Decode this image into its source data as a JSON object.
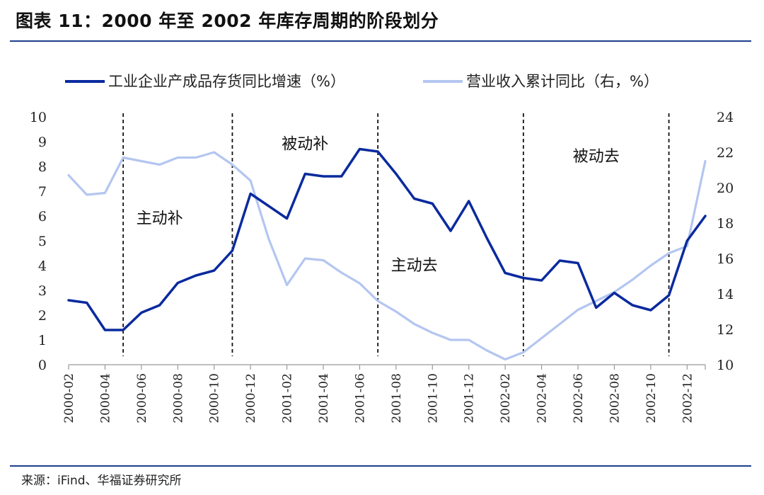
{
  "title": "图表 11：2000 年至 2002 年库存周期的阶段划分",
  "source": "来源：iFind、华福证券研究所",
  "colors": {
    "series1": "#0a2a9e",
    "series2": "#b4c6f0",
    "rule": "#1f3f8f"
  },
  "chart_data": {
    "type": "line",
    "title": "图表 11：2000 年至 2002 年库存周期的阶段划分",
    "x": [
      "2000-02",
      "2000-03",
      "2000-04",
      "2000-05",
      "2000-06",
      "2000-07",
      "2000-08",
      "2000-09",
      "2000-10",
      "2000-11",
      "2000-12",
      "2001-01",
      "2001-02",
      "2001-03",
      "2001-04",
      "2001-05",
      "2001-06",
      "2001-07",
      "2001-08",
      "2001-09",
      "2001-10",
      "2001-11",
      "2001-12",
      "2002-01",
      "2002-02",
      "2002-03",
      "2002-04",
      "2002-05",
      "2002-06",
      "2002-07",
      "2002-08",
      "2002-09",
      "2002-10",
      "2002-11",
      "2002-12",
      "2003-01"
    ],
    "x_tick_labels": [
      "2000-02",
      "2000-04",
      "2000-06",
      "2000-08",
      "2000-10",
      "2000-12",
      "2001-02",
      "2001-04",
      "2001-06",
      "2001-08",
      "2001-10",
      "2001-12",
      "2002-02",
      "2002-04",
      "2002-06",
      "2002-08",
      "2002-10",
      "2002-12"
    ],
    "series": [
      {
        "name": "工业企业产成品存货同比增速（%）",
        "axis": "left",
        "values": [
          2.6,
          2.5,
          1.4,
          1.4,
          2.1,
          2.4,
          3.3,
          3.6,
          3.8,
          4.6,
          6.9,
          6.4,
          5.9,
          7.7,
          7.6,
          7.6,
          8.7,
          8.6,
          7.7,
          6.7,
          6.5,
          5.4,
          6.6,
          5.1,
          3.7,
          3.5,
          3.4,
          4.2,
          4.1,
          2.3,
          2.9,
          2.4,
          2.2,
          2.8,
          5.0,
          6.0
        ]
      },
      {
        "name": "营业收入累计同比（右，%）",
        "axis": "right",
        "values": [
          20.7,
          19.6,
          19.7,
          21.7,
          21.5,
          21.3,
          21.7,
          21.7,
          22.0,
          21.3,
          20.4,
          17.1,
          14.5,
          16.0,
          15.9,
          15.2,
          14.6,
          13.6,
          13.0,
          12.3,
          11.8,
          11.4,
          11.4,
          10.8,
          10.3,
          10.7,
          11.5,
          12.3,
          13.1,
          13.6,
          14.1,
          14.8,
          15.6,
          16.3,
          16.7,
          21.5
        ]
      }
    ],
    "y_left": {
      "min": 0,
      "max": 10,
      "ticks": [
        "0",
        "1",
        "2",
        "3",
        "4",
        "5",
        "6",
        "7",
        "8",
        "9",
        "10"
      ]
    },
    "y_right": {
      "min": 10,
      "max": 24,
      "ticks": [
        "10",
        "12",
        "14",
        "16",
        "18",
        "20",
        "22",
        "24"
      ]
    },
    "grid": false,
    "legend": "top",
    "dividers": [
      "2000-05",
      "2000-11",
      "2001-07",
      "2002-03",
      "2002-11"
    ],
    "annotations": [
      {
        "text": "主动补",
        "x": "2000-07",
        "y": 5.7
      },
      {
        "text": "被动补",
        "x": "2001-03",
        "y": 8.7
      },
      {
        "text": "主动去",
        "x": "2001-09",
        "y": 3.8
      },
      {
        "text": "被动去",
        "x": "2002-07",
        "y": 8.2
      }
    ]
  }
}
